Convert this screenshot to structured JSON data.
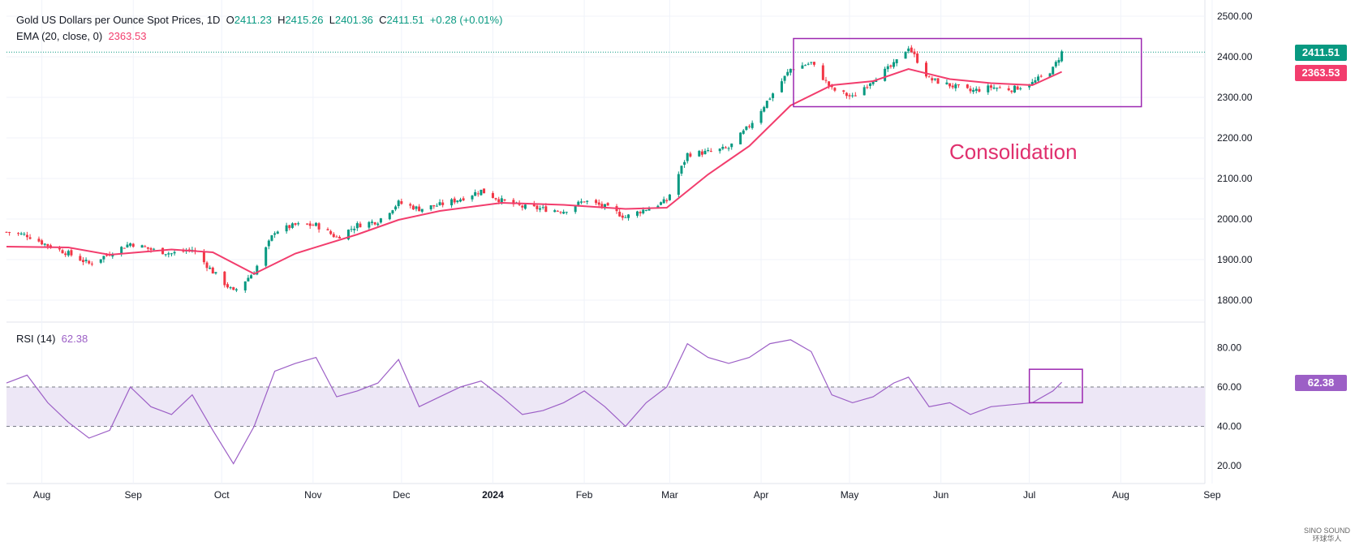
{
  "header": {
    "symbol": "Gold US Dollars per Ounce Spot Prices, 1D",
    "open_label": "O",
    "open": "2411.23",
    "high_label": "H",
    "high": "2415.26",
    "low_label": "L",
    "low": "2401.36",
    "close_label": "C",
    "close": "2411.51",
    "change": "+0.28 (+0.01%)"
  },
  "ema_legend": {
    "label": "EMA (20, close, 0)",
    "value": "2363.53"
  },
  "rsi_legend": {
    "label": "RSI (14)",
    "value": "62.38"
  },
  "price_tags": {
    "last": "2411.51",
    "ema": "2363.53",
    "rsi": "62.38"
  },
  "annotation": "Consolidation",
  "watermark": {
    "line1": "SINO SOUND",
    "line2": "环球华人"
  },
  "colors": {
    "up": "#089981",
    "down": "#f23645",
    "ema": "#f23d6d",
    "rsi": "#9c5fc6",
    "box": "#9c27b0",
    "band": "#ede7f6"
  },
  "chart_data": [
    {
      "type": "candlestick",
      "title": "Gold US Dollars per Ounce Spot Prices, 1D",
      "xlabels": [
        "Aug",
        "Sep",
        "Oct",
        "Nov",
        "Dec",
        "2024",
        "Feb",
        "Mar",
        "Apr",
        "May",
        "Jun",
        "Jul",
        "Aug",
        "Sep"
      ],
      "ylim": [
        1760,
        2520
      ],
      "yticks": [
        "2500.00",
        "2400.00",
        "2300.00",
        "2200.00",
        "2100.00",
        "2000.00",
        "1900.00",
        "1800.00"
      ],
      "price_path": [
        [
          "2023-07-20",
          1968
        ],
        [
          "2023-07-27",
          1960
        ],
        [
          "2023-08-03",
          1935
        ],
        [
          "2023-08-10",
          1915
        ],
        [
          "2023-08-17",
          1890
        ],
        [
          "2023-08-24",
          1915
        ],
        [
          "2023-08-31",
          1940
        ],
        [
          "2023-09-07",
          1925
        ],
        [
          "2023-09-14",
          1915
        ],
        [
          "2023-09-21",
          1925
        ],
        [
          "2023-09-28",
          1870
        ],
        [
          "2023-10-05",
          1820
        ],
        [
          "2023-10-12",
          1870
        ],
        [
          "2023-10-19",
          1970
        ],
        [
          "2023-10-26",
          1985
        ],
        [
          "2023-11-02",
          1985
        ],
        [
          "2023-11-09",
          1955
        ],
        [
          "2023-11-16",
          1985
        ],
        [
          "2023-11-23",
          1995
        ],
        [
          "2023-11-30",
          2040
        ],
        [
          "2023-12-07",
          2025
        ],
        [
          "2023-12-14",
          2035
        ],
        [
          "2023-12-21",
          2050
        ],
        [
          "2023-12-28",
          2070
        ],
        [
          "2024-01-04",
          2045
        ],
        [
          "2024-01-11",
          2030
        ],
        [
          "2024-01-18",
          2025
        ],
        [
          "2024-01-25",
          2020
        ],
        [
          "2024-02-01",
          2045
        ],
        [
          "2024-02-08",
          2030
        ],
        [
          "2024-02-15",
          2005
        ],
        [
          "2024-02-22",
          2025
        ],
        [
          "2024-02-29",
          2045
        ],
        [
          "2024-03-07",
          2160
        ],
        [
          "2024-03-14",
          2165
        ],
        [
          "2024-03-21",
          2175
        ],
        [
          "2024-03-28",
          2230
        ],
        [
          "2024-04-04",
          2300
        ],
        [
          "2024-04-11",
          2370
        ],
        [
          "2024-04-18",
          2385
        ],
        [
          "2024-04-25",
          2320
        ],
        [
          "2024-05-02",
          2300
        ],
        [
          "2024-05-09",
          2345
        ],
        [
          "2024-05-16",
          2380
        ],
        [
          "2024-05-21",
          2425
        ],
        [
          "2024-05-28",
          2345
        ],
        [
          "2024-06-04",
          2330
        ],
        [
          "2024-06-11",
          2315
        ],
        [
          "2024-06-18",
          2325
        ],
        [
          "2024-06-25",
          2320
        ],
        [
          "2024-07-02",
          2335
        ],
        [
          "2024-07-09",
          2370
        ],
        [
          "2024-07-12",
          2411
        ]
      ],
      "ema20_path": [
        [
          "2023-07-20",
          1932
        ],
        [
          "2023-08-10",
          1930
        ],
        [
          "2023-08-24",
          1912
        ],
        [
          "2023-09-14",
          1925
        ],
        [
          "2023-09-28",
          1918
        ],
        [
          "2023-10-12",
          1865
        ],
        [
          "2023-10-26",
          1915
        ],
        [
          "2023-11-16",
          1962
        ],
        [
          "2023-11-30",
          1998
        ],
        [
          "2023-12-14",
          2020
        ],
        [
          "2024-01-04",
          2040
        ],
        [
          "2024-01-25",
          2035
        ],
        [
          "2024-02-15",
          2025
        ],
        [
          "2024-02-29",
          2028
        ],
        [
          "2024-03-14",
          2110
        ],
        [
          "2024-03-28",
          2180
        ],
        [
          "2024-04-11",
          2280
        ],
        [
          "2024-04-25",
          2330
        ],
        [
          "2024-05-09",
          2340
        ],
        [
          "2024-05-21",
          2370
        ],
        [
          "2024-06-04",
          2345
        ],
        [
          "2024-06-18",
          2335
        ],
        [
          "2024-07-02",
          2330
        ],
        [
          "2024-07-12",
          2363
        ]
      ],
      "box": {
        "from": "2024-04-12",
        "to": "2024-08-08",
        "top": 2445,
        "bottom": 2277
      },
      "last_close": 2411.51,
      "ema_last": 2363.53
    },
    {
      "type": "line",
      "title": "RSI (14)",
      "ylim": [
        13,
        90
      ],
      "yticks": [
        "80.00",
        "60.00",
        "40.00",
        "20.00"
      ],
      "levels": [
        60,
        40
      ],
      "rsi_path": [
        [
          "2023-07-20",
          62
        ],
        [
          "2023-07-27",
          66
        ],
        [
          "2023-08-03",
          52
        ],
        [
          "2023-08-10",
          42
        ],
        [
          "2023-08-17",
          34
        ],
        [
          "2023-08-24",
          38
        ],
        [
          "2023-08-31",
          60
        ],
        [
          "2023-09-07",
          50
        ],
        [
          "2023-09-14",
          46
        ],
        [
          "2023-09-21",
          56
        ],
        [
          "2023-09-28",
          38
        ],
        [
          "2023-10-05",
          21
        ],
        [
          "2023-10-12",
          40
        ],
        [
          "2023-10-19",
          68
        ],
        [
          "2023-10-26",
          72
        ],
        [
          "2023-11-02",
          75
        ],
        [
          "2023-11-09",
          55
        ],
        [
          "2023-11-16",
          58
        ],
        [
          "2023-11-23",
          62
        ],
        [
          "2023-11-30",
          74
        ],
        [
          "2023-12-07",
          50
        ],
        [
          "2023-12-14",
          55
        ],
        [
          "2023-12-21",
          60
        ],
        [
          "2023-12-28",
          63
        ],
        [
          "2024-01-04",
          55
        ],
        [
          "2024-01-11",
          46
        ],
        [
          "2024-01-18",
          48
        ],
        [
          "2024-01-25",
          52
        ],
        [
          "2024-02-01",
          58
        ],
        [
          "2024-02-08",
          50
        ],
        [
          "2024-02-15",
          40
        ],
        [
          "2024-02-22",
          52
        ],
        [
          "2024-02-29",
          60
        ],
        [
          "2024-03-07",
          82
        ],
        [
          "2024-03-14",
          75
        ],
        [
          "2024-03-21",
          72
        ],
        [
          "2024-03-28",
          75
        ],
        [
          "2024-04-04",
          82
        ],
        [
          "2024-04-11",
          84
        ],
        [
          "2024-04-18",
          78
        ],
        [
          "2024-04-25",
          56
        ],
        [
          "2024-05-02",
          52
        ],
        [
          "2024-05-09",
          55
        ],
        [
          "2024-05-16",
          62
        ],
        [
          "2024-05-21",
          65
        ],
        [
          "2024-05-28",
          50
        ],
        [
          "2024-06-04",
          52
        ],
        [
          "2024-06-11",
          46
        ],
        [
          "2024-06-18",
          50
        ],
        [
          "2024-06-25",
          51
        ],
        [
          "2024-07-02",
          52
        ],
        [
          "2024-07-09",
          58
        ],
        [
          "2024-07-12",
          62.38
        ]
      ],
      "box": {
        "from": "2024-07-01",
        "to": "2024-07-19",
        "top": 69,
        "bottom": 52
      },
      "last": 62.38
    }
  ]
}
